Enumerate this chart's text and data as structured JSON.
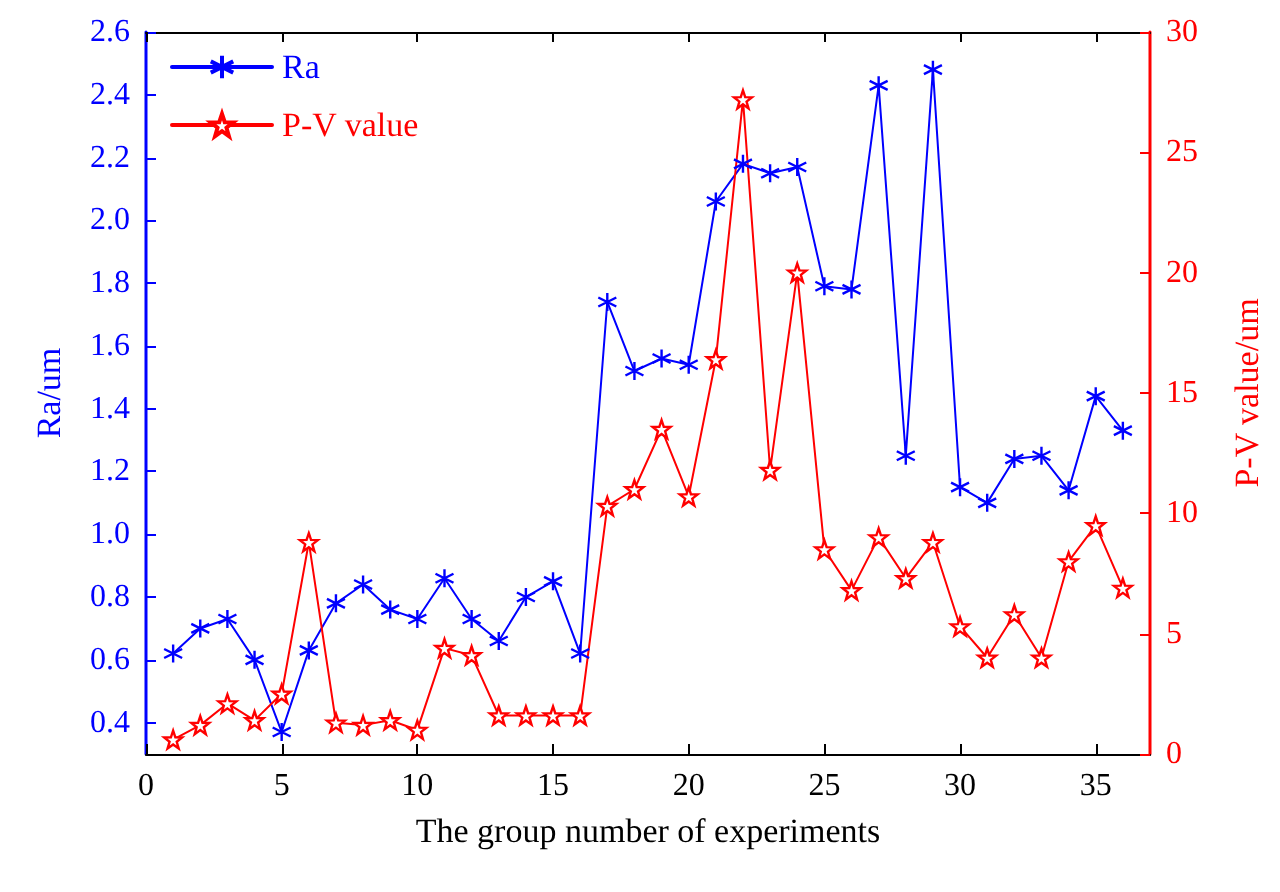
{
  "chart_data": {
    "type": "line",
    "xlabel": "The group number of experiments",
    "ylabel": "Ra/um",
    "y2label": "P-V value/um",
    "x": [
      1,
      2,
      3,
      4,
      5,
      6,
      7,
      8,
      9,
      10,
      11,
      12,
      13,
      14,
      15,
      16,
      17,
      18,
      19,
      20,
      21,
      22,
      23,
      24,
      25,
      26,
      27,
      28,
      29,
      30,
      31,
      32,
      33,
      34,
      35,
      36
    ],
    "series": [
      {
        "name": "Ra",
        "color": "#0000ff",
        "marker": "cross",
        "values": [
          0.62,
          0.7,
          0.73,
          0.6,
          0.37,
          0.63,
          0.78,
          0.84,
          0.76,
          0.73,
          0.86,
          0.73,
          0.66,
          0.8,
          0.85,
          0.62,
          1.74,
          1.52,
          1.56,
          1.54,
          2.06,
          2.18,
          2.15,
          2.17,
          1.79,
          1.78,
          2.43,
          1.25,
          2.48,
          1.15,
          1.1,
          1.24,
          1.25,
          1.14,
          1.44,
          1.33
        ]
      },
      {
        "name": "P-V value",
        "color": "#ff0000",
        "marker": "star",
        "axis": "y2",
        "values": [
          0.6,
          1.2,
          2.1,
          1.4,
          2.5,
          8.8,
          1.3,
          1.2,
          1.4,
          1.0,
          4.4,
          4.1,
          1.6,
          1.6,
          1.6,
          1.6,
          10.3,
          11.0,
          13.5,
          10.7,
          16.4,
          27.2,
          11.8,
          20.0,
          8.5,
          6.8,
          9.0,
          7.3,
          8.8,
          5.3,
          4.0,
          5.8,
          4.0,
          8.0,
          9.5,
          6.9
        ]
      }
    ],
    "xlim": [
      0,
      37
    ],
    "xticks": [
      0,
      5,
      10,
      15,
      20,
      25,
      30,
      35
    ],
    "ylim": [
      0.3,
      2.6
    ],
    "yticks": [
      0.4,
      0.6,
      0.8,
      {
        "value": 1.0,
        "label": "1.0"
      },
      1.2,
      1.4,
      1.6,
      1.8,
      {
        "value": 2.0,
        "label": "2.0"
      },
      2.2,
      2.4,
      2.6
    ],
    "y2lim": [
      0,
      30
    ],
    "y2ticks": [
      0,
      5,
      10,
      15,
      20,
      25,
      30
    ],
    "grid": false,
    "legend": "top left",
    "line_style": "solid"
  }
}
